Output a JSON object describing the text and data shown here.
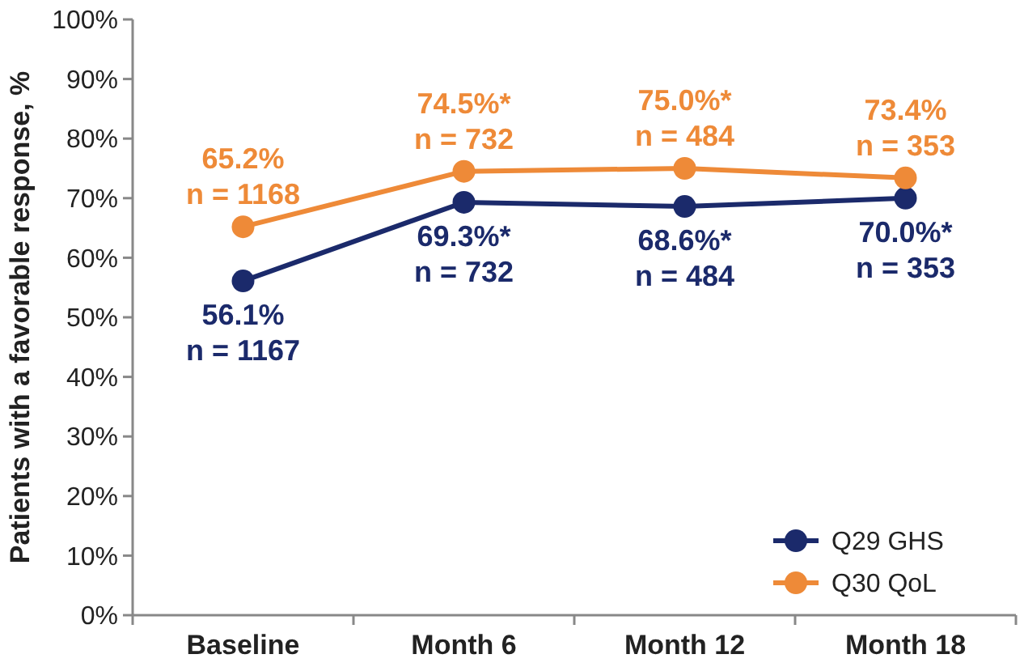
{
  "chart_data": {
    "type": "line",
    "ylabel": "Patients with a favorable response, %",
    "categories": [
      "Baseline",
      "Month 6",
      "Month 12",
      "Month 18"
    ],
    "series": [
      {
        "name": "Q29 GHS",
        "color": "#1b2a6b",
        "values": [
          56.1,
          69.3,
          68.6,
          70.0
        ],
        "value_labels": [
          "56.1%\nn = 1167",
          "69.3%*\nn = 732",
          "68.6%*\nn = 484",
          "70.0%*\nn = 353"
        ]
      },
      {
        "name": "Q30 QoL",
        "color": "#ee8a38",
        "values": [
          65.2,
          74.5,
          75.0,
          73.4
        ],
        "value_labels": [
          "65.2%\nn = 1168",
          "74.5%*\nn = 732",
          "75.0%*\nn = 484",
          "73.4%\nn = 353"
        ]
      }
    ],
    "ylim": [
      0,
      100
    ],
    "yticks": [
      {
        "value": 0,
        "label": "0%"
      },
      {
        "value": 10,
        "label": "10%"
      },
      {
        "value": 20,
        "label": "20%"
      },
      {
        "value": 30,
        "label": "30%"
      },
      {
        "value": 40,
        "label": "40%"
      },
      {
        "value": 50,
        "label": "50%"
      },
      {
        "value": 60,
        "label": "60%"
      },
      {
        "value": 70,
        "label": "70%"
      },
      {
        "value": 80,
        "label": "80%"
      },
      {
        "value": 90,
        "label": "90%"
      },
      {
        "value": 100,
        "label": "100%"
      }
    ],
    "legend": "bottom right",
    "marker": "circle",
    "line_style": "solid",
    "grid": false
  }
}
